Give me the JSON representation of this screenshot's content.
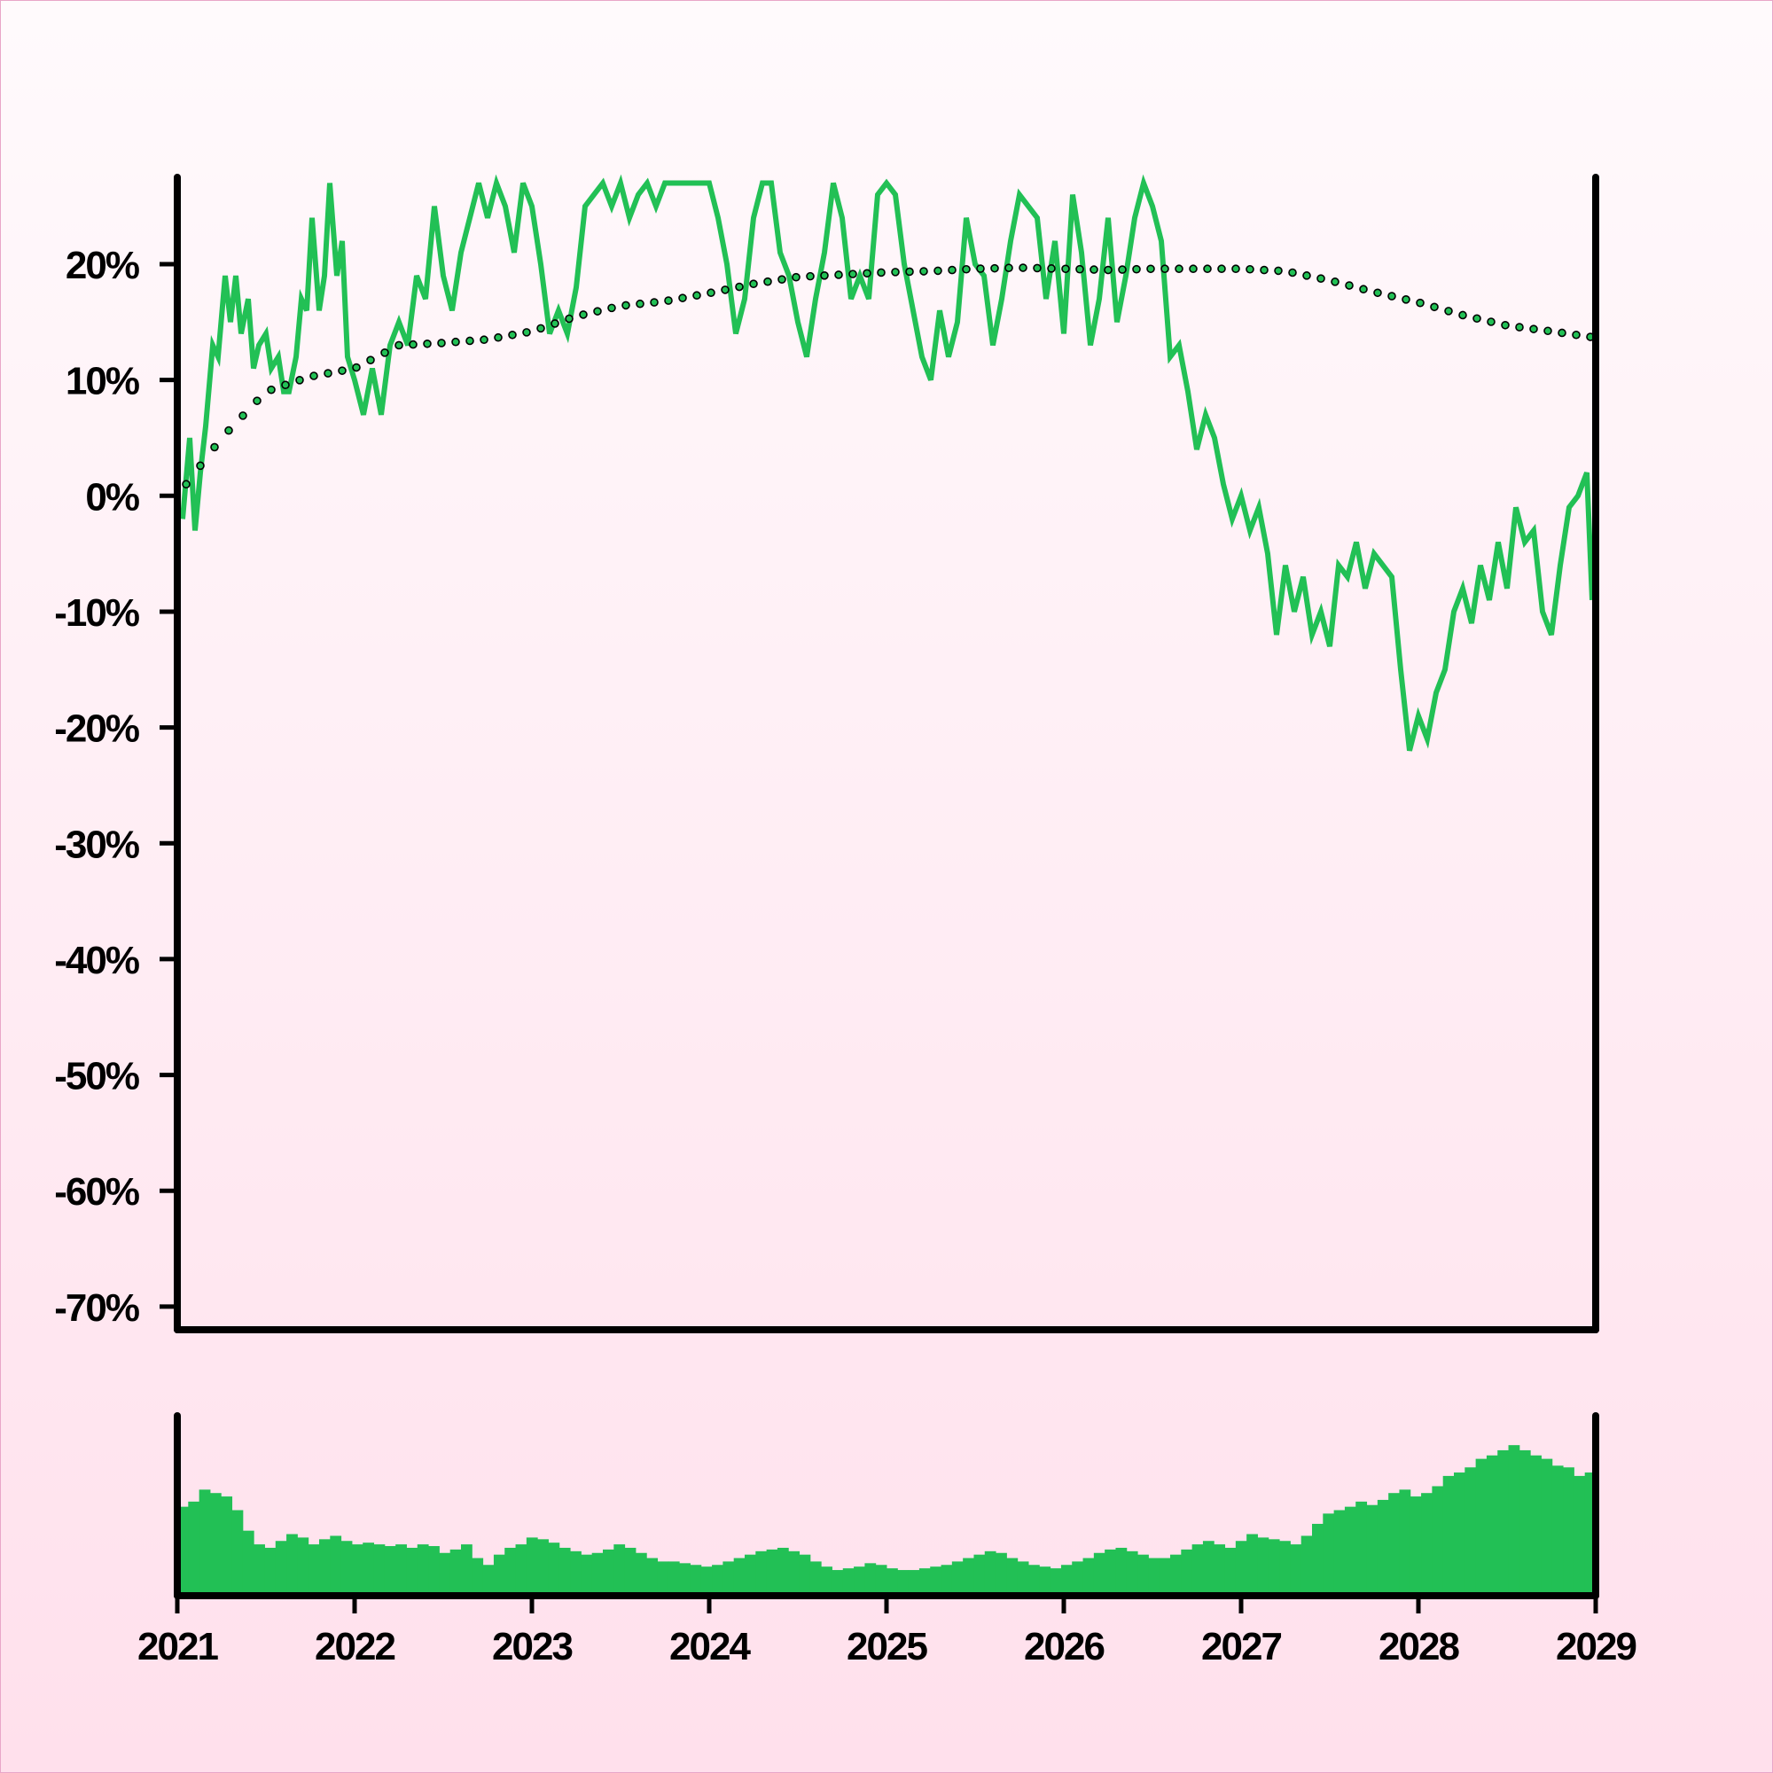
{
  "chart_data": {
    "type": "line",
    "colors": {
      "line": "#22c055",
      "trend": "#22c055",
      "volume": "#22c055",
      "axis": "#000000"
    },
    "x_ticks": [
      "2021",
      "2022",
      "2023",
      "2024",
      "2025",
      "2026",
      "2027",
      "2028",
      "2029"
    ],
    "y_ticks": [
      "20%",
      "10%",
      "0%",
      "-10%",
      "-20%",
      "-30%",
      "-40%",
      "-50%",
      "-60%",
      "-70%"
    ],
    "y_tick_values": [
      20,
      10,
      0,
      -10,
      -20,
      -30,
      -40,
      -50,
      -60,
      -70
    ],
    "xlim": [
      2021.0,
      2029.0
    ],
    "ylim": [
      -72,
      27.5
    ],
    "series": [
      {
        "style": "line",
        "x": [
          2021.03,
          2021.07,
          2021.1,
          2021.13,
          2021.16,
          2021.2,
          2021.23,
          2021.27,
          2021.3,
          2021.33,
          2021.36,
          2021.4,
          2021.43,
          2021.46,
          2021.5,
          2021.53,
          2021.57,
          2021.6,
          2021.63,
          2021.67,
          2021.7,
          2021.73,
          2021.76,
          2021.8,
          2021.83,
          2021.86,
          2021.9,
          2021.93,
          2021.96,
          2022.0,
          2022.05,
          2022.1,
          2022.15,
          2022.2,
          2022.25,
          2022.3,
          2022.35,
          2022.4,
          2022.45,
          2022.5,
          2022.55,
          2022.6,
          2022.65,
          2022.7,
          2022.75,
          2022.8,
          2022.85,
          2022.9,
          2022.95,
          2023.0,
          2023.05,
          2023.1,
          2023.15,
          2023.2,
          2023.25,
          2023.3,
          2023.35,
          2023.4,
          2023.45,
          2023.5,
          2023.55,
          2023.6,
          2023.65,
          2023.7,
          2023.75,
          2023.8,
          2023.85,
          2023.9,
          2023.95,
          2024.0,
          2024.05,
          2024.1,
          2024.15,
          2024.2,
          2024.25,
          2024.3,
          2024.35,
          2024.4,
          2024.45,
          2024.5,
          2024.55,
          2024.6,
          2024.65,
          2024.7,
          2024.75,
          2024.8,
          2024.85,
          2024.9,
          2024.95,
          2025.0,
          2025.05,
          2025.1,
          2025.15,
          2025.2,
          2025.25,
          2025.3,
          2025.35,
          2025.4,
          2025.45,
          2025.5,
          2025.55,
          2025.6,
          2025.65,
          2025.7,
          2025.75,
          2025.8,
          2025.85,
          2025.9,
          2025.95,
          2026.0,
          2026.05,
          2026.1,
          2026.15,
          2026.2,
          2026.25,
          2026.3,
          2026.35,
          2026.4,
          2026.45,
          2026.5,
          2026.55,
          2026.6,
          2026.65,
          2026.7,
          2026.75,
          2026.8,
          2026.85,
          2026.9,
          2026.95,
          2027.0,
          2027.05,
          2027.1,
          2027.15,
          2027.2,
          2027.25,
          2027.3,
          2027.35,
          2027.4,
          2027.45,
          2027.5,
          2027.55,
          2027.6,
          2027.65,
          2027.7,
          2027.75,
          2027.8,
          2027.85,
          2027.9,
          2027.95,
          2028.0,
          2028.05,
          2028.1,
          2028.15,
          2028.2,
          2028.25,
          2028.3,
          2028.35,
          2028.4,
          2028.45,
          2028.5,
          2028.55,
          2028.6,
          2028.65,
          2028.7,
          2028.75,
          2028.8,
          2028.85,
          2028.9,
          2028.95,
          2028.98
        ],
        "y": [
          -2,
          5,
          -3,
          2,
          6,
          13,
          12,
          19,
          15,
          19,
          14,
          17,
          11,
          13,
          14,
          11,
          12,
          9,
          9,
          12,
          17,
          16,
          24,
          16,
          19,
          27,
          19,
          22,
          12,
          10,
          7,
          11,
          7,
          13,
          15,
          13,
          19,
          17,
          25,
          19,
          16,
          21,
          24,
          27,
          24,
          27,
          25,
          21,
          27,
          25,
          20,
          14,
          16,
          14,
          18,
          25,
          26,
          27,
          25,
          27,
          24,
          26,
          27,
          25,
          27,
          27,
          27,
          27,
          27,
          27,
          24,
          20,
          14,
          17,
          24,
          27,
          27,
          21,
          19,
          15,
          12,
          17,
          21,
          27,
          24,
          17,
          19,
          17,
          26,
          27,
          26,
          20,
          16,
          12,
          10,
          16,
          12,
          15,
          24,
          20,
          19,
          13,
          17,
          22,
          26,
          25,
          24,
          17,
          22,
          14,
          26,
          21,
          13,
          17,
          24,
          15,
          19,
          24,
          27,
          25,
          22,
          12,
          13,
          9,
          4,
          7,
          5,
          1,
          -2,
          0,
          -3,
          -1,
          -5,
          -12,
          -6,
          -10,
          -7,
          -12,
          -10,
          -13,
          -6,
          -7,
          -4,
          -8,
          -5,
          -6,
          -7,
          -15,
          -22,
          -19,
          -21,
          -17,
          -15,
          -10,
          -8,
          -11,
          -6,
          -9,
          -4,
          -8,
          -1,
          -4,
          -3,
          -10,
          -12,
          -6,
          -1,
          0,
          2,
          -9
        ],
        "values_note": ""
      },
      {
        "style": "dotted",
        "x": [
          2021.0,
          2021.25,
          2021.5,
          2021.75,
          2022.0,
          2022.25,
          2022.5,
          2022.75,
          2023.0,
          2023.25,
          2023.5,
          2023.75,
          2024.0,
          2024.25,
          2024.5,
          2024.75,
          2025.0,
          2025.25,
          2025.5,
          2025.75,
          2026.0,
          2026.25,
          2026.5,
          2026.75,
          2027.0,
          2027.25,
          2027.5,
          2027.75,
          2028.0,
          2028.25,
          2028.5,
          2028.75,
          2028.98
        ],
        "y": [
          0,
          5,
          9,
          10.3,
          11,
          13,
          13.2,
          13.5,
          14.2,
          15.5,
          16.4,
          16.8,
          17.5,
          18.3,
          18.9,
          19.1,
          19.3,
          19.4,
          19.6,
          19.7,
          19.6,
          19.5,
          19.6,
          19.6,
          19.6,
          19.4,
          18.6,
          17.6,
          16.7,
          15.6,
          14.7,
          14.2,
          13.7
        ]
      }
    ],
    "volume": [
      0.52,
      0.55,
      0.62,
      0.6,
      0.58,
      0.5,
      0.38,
      0.3,
      0.28,
      0.32,
      0.36,
      0.34,
      0.3,
      0.33,
      0.35,
      0.32,
      0.3,
      0.31,
      0.3,
      0.29,
      0.3,
      0.28,
      0.3,
      0.29,
      0.25,
      0.27,
      0.3,
      0.22,
      0.18,
      0.24,
      0.28,
      0.3,
      0.34,
      0.33,
      0.31,
      0.28,
      0.26,
      0.24,
      0.25,
      0.27,
      0.3,
      0.28,
      0.25,
      0.22,
      0.2,
      0.2,
      0.19,
      0.18,
      0.17,
      0.18,
      0.2,
      0.22,
      0.24,
      0.26,
      0.27,
      0.28,
      0.26,
      0.24,
      0.2,
      0.17,
      0.15,
      0.16,
      0.17,
      0.19,
      0.18,
      0.16,
      0.15,
      0.15,
      0.16,
      0.17,
      0.18,
      0.2,
      0.22,
      0.24,
      0.26,
      0.25,
      0.22,
      0.2,
      0.18,
      0.17,
      0.16,
      0.18,
      0.2,
      0.22,
      0.25,
      0.27,
      0.28,
      0.26,
      0.24,
      0.22,
      0.22,
      0.24,
      0.27,
      0.3,
      0.32,
      0.3,
      0.28,
      0.32,
      0.36,
      0.34,
      0.33,
      0.32,
      0.3,
      0.35,
      0.42,
      0.48,
      0.5,
      0.52,
      0.55,
      0.53,
      0.56,
      0.6,
      0.62,
      0.58,
      0.6,
      0.64,
      0.7,
      0.72,
      0.75,
      0.8,
      0.82,
      0.85,
      0.88,
      0.85,
      0.82,
      0.8,
      0.76,
      0.75,
      0.7,
      0.72
    ],
    "volume_max": 1.0
  }
}
